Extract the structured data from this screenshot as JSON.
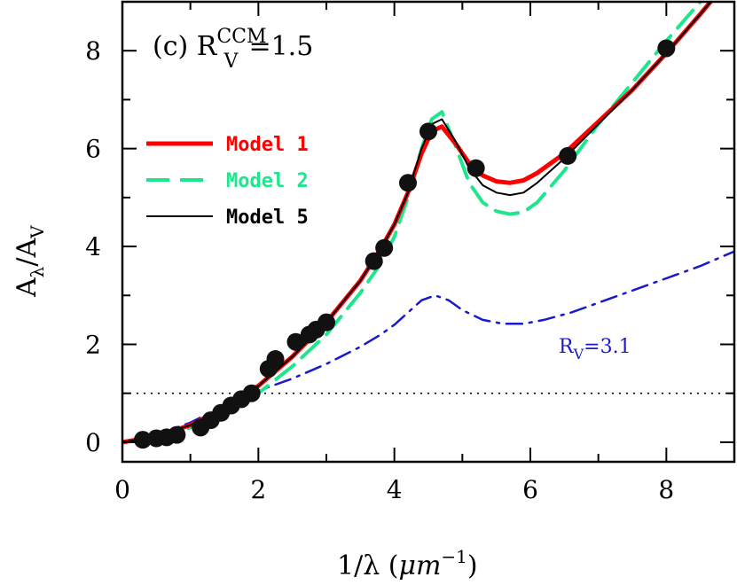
{
  "chart_data": {
    "type": "line",
    "panel_label": "(c) R",
    "panel_label_sup": "CCM",
    "panel_label_sub": "V",
    "panel_label_value": "=1.5",
    "xlabel_prefix": "1/λ (",
    "xlabel_unit": "μm",
    "xlabel_exp": "−1",
    "xlabel_suffix": ")",
    "ylabel_main": "A",
    "ylabel_sub1": "λ",
    "ylabel_mid": "/A",
    "ylabel_sub2": "V",
    "xlim": [
      0,
      9
    ],
    "ylim": [
      -0.4,
      9.0
    ],
    "x_ticks": [
      "0",
      "2",
      "4",
      "6",
      "8"
    ],
    "y_ticks": [
      "0",
      "2",
      "4",
      "6",
      "8"
    ],
    "reference_line_y": 1.0,
    "rv_label_main": "R",
    "rv_label_sub": "V",
    "rv_label_value": "=3.1",
    "colors": {
      "model1": "#ff0000",
      "model2": "#1ee68c",
      "model5": "#000000",
      "rv31": "#1a1acc"
    },
    "series": [
      {
        "name": "Model 1",
        "style": "solid-thick",
        "x": [
          0,
          0.5,
          1.0,
          1.5,
          2.0,
          2.5,
          3.0,
          3.5,
          3.8,
          4.0,
          4.2,
          4.4,
          4.55,
          4.7,
          4.9,
          5.1,
          5.3,
          5.5,
          5.7,
          5.9,
          6.1,
          6.5,
          7.0,
          7.5,
          8.0,
          8.5,
          8.95
        ],
        "y": [
          0,
          0.12,
          0.35,
          0.7,
          1.15,
          1.75,
          2.45,
          3.3,
          3.95,
          4.45,
          5.1,
          5.9,
          6.35,
          6.45,
          6.1,
          5.7,
          5.45,
          5.33,
          5.3,
          5.35,
          5.5,
          5.9,
          6.55,
          7.2,
          7.95,
          8.75,
          9.5
        ]
      },
      {
        "name": "Model 2",
        "style": "dashed",
        "x": [
          0,
          0.5,
          1.0,
          1.5,
          2.0,
          2.5,
          3.0,
          3.5,
          3.8,
          4.0,
          4.2,
          4.4,
          4.55,
          4.7,
          4.9,
          5.1,
          5.3,
          5.5,
          5.7,
          5.9,
          6.1,
          6.5,
          7.0,
          7.5,
          8.0,
          8.5,
          8.95
        ],
        "y": [
          0,
          0.12,
          0.3,
          0.6,
          1.0,
          1.55,
          2.2,
          3.05,
          3.65,
          4.2,
          5.0,
          6.0,
          6.6,
          6.75,
          6.05,
          5.3,
          4.9,
          4.72,
          4.66,
          4.7,
          4.9,
          5.55,
          6.5,
          7.35,
          8.2,
          9.0,
          9.6
        ]
      },
      {
        "name": "Model 5",
        "style": "solid-thin",
        "x": [
          0,
          0.5,
          1.0,
          1.5,
          2.0,
          2.5,
          3.0,
          3.5,
          3.8,
          4.0,
          4.2,
          4.4,
          4.55,
          4.7,
          4.9,
          5.1,
          5.3,
          5.5,
          5.7,
          5.9,
          6.1,
          6.5,
          7.0,
          7.5,
          8.0,
          8.5,
          8.95
        ],
        "y": [
          0,
          0.12,
          0.35,
          0.7,
          1.15,
          1.75,
          2.45,
          3.3,
          3.95,
          4.45,
          5.1,
          6.0,
          6.5,
          6.6,
          6.15,
          5.6,
          5.25,
          5.1,
          5.05,
          5.1,
          5.3,
          5.8,
          6.5,
          7.2,
          7.95,
          8.75,
          9.5
        ]
      },
      {
        "name": "",
        "style": "dash-dot",
        "x": [
          0,
          0.5,
          1.0,
          1.5,
          2.0,
          2.5,
          3.0,
          3.5,
          3.8,
          4.0,
          4.2,
          4.4,
          4.6,
          4.8,
          5.0,
          5.3,
          5.6,
          5.9,
          6.2,
          6.6,
          7.0,
          7.5,
          8.0,
          8.5,
          9.0
        ],
        "y": [
          0,
          0.15,
          0.4,
          0.75,
          1.05,
          1.3,
          1.6,
          1.95,
          2.2,
          2.4,
          2.65,
          2.9,
          3.0,
          2.9,
          2.7,
          2.5,
          2.42,
          2.42,
          2.5,
          2.65,
          2.85,
          3.1,
          3.35,
          3.6,
          3.9
        ]
      }
    ],
    "observed_points": {
      "x": [
        0.3,
        0.5,
        0.65,
        0.8,
        1.15,
        1.3,
        1.45,
        1.6,
        1.75,
        1.9,
        2.15,
        2.25,
        2.55,
        2.75,
        2.85,
        3.0,
        3.7,
        3.85,
        4.2,
        4.5,
        5.2,
        6.55,
        8.0
      ],
      "y": [
        0.05,
        0.08,
        0.1,
        0.15,
        0.3,
        0.45,
        0.6,
        0.75,
        0.88,
        1.0,
        1.5,
        1.7,
        2.05,
        2.2,
        2.3,
        2.45,
        3.7,
        3.97,
        5.3,
        6.35,
        5.6,
        5.85,
        8.05
      ]
    }
  }
}
